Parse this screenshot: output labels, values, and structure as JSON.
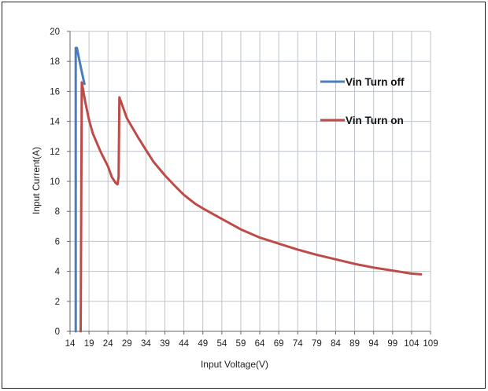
{
  "chart_data": {
    "type": "line",
    "xlabel": "Input Voltage(V)",
    "ylabel": "Input Current(A)",
    "xlim": [
      14,
      109
    ],
    "ylim": [
      0,
      20
    ],
    "x_ticks": [
      "14",
      "19",
      "24",
      "29",
      "34",
      "39",
      "44",
      "49",
      "54",
      "59",
      "64",
      "69",
      "74",
      "79",
      "84",
      "89",
      "94",
      "99",
      "104",
      "109"
    ],
    "y_ticks": [
      "0",
      "2",
      "4",
      "6",
      "8",
      "10",
      "12",
      "14",
      "16",
      "18",
      "20"
    ],
    "grid": true,
    "legend_position": "right",
    "series": [
      {
        "name": "Vin Turn off",
        "color": "#4a7ebb",
        "points": [
          [
            15.5,
            0
          ],
          [
            15.5,
            18.9
          ],
          [
            15.8,
            18.9
          ],
          [
            16.2,
            18.4
          ],
          [
            17,
            17.4
          ],
          [
            17.8,
            16.5
          ]
        ]
      },
      {
        "name": "Vin Turn on",
        "color": "#be4b48",
        "points": [
          [
            16.8,
            0
          ],
          [
            17.1,
            16.6
          ],
          [
            18,
            15.3
          ],
          [
            19,
            14.1
          ],
          [
            20,
            13.2
          ],
          [
            22,
            12.0
          ],
          [
            24,
            11.0
          ],
          [
            25,
            10.3
          ],
          [
            26,
            9.9
          ],
          [
            26.5,
            9.8
          ],
          [
            26.8,
            10.3
          ],
          [
            27.0,
            15.6
          ],
          [
            28,
            14.9
          ],
          [
            29,
            14.2
          ],
          [
            32,
            12.9
          ],
          [
            34,
            12.1
          ],
          [
            36,
            11.3
          ],
          [
            39,
            10.4
          ],
          [
            42,
            9.6
          ],
          [
            44,
            9.1
          ],
          [
            47,
            8.5
          ],
          [
            49,
            8.2
          ],
          [
            54,
            7.5
          ],
          [
            59,
            6.8
          ],
          [
            64,
            6.25
          ],
          [
            69,
            5.85
          ],
          [
            74,
            5.45
          ],
          [
            79,
            5.1
          ],
          [
            84,
            4.8
          ],
          [
            89,
            4.5
          ],
          [
            94,
            4.25
          ],
          [
            99,
            4.05
          ],
          [
            104,
            3.85
          ],
          [
            106.5,
            3.8
          ]
        ]
      }
    ]
  }
}
